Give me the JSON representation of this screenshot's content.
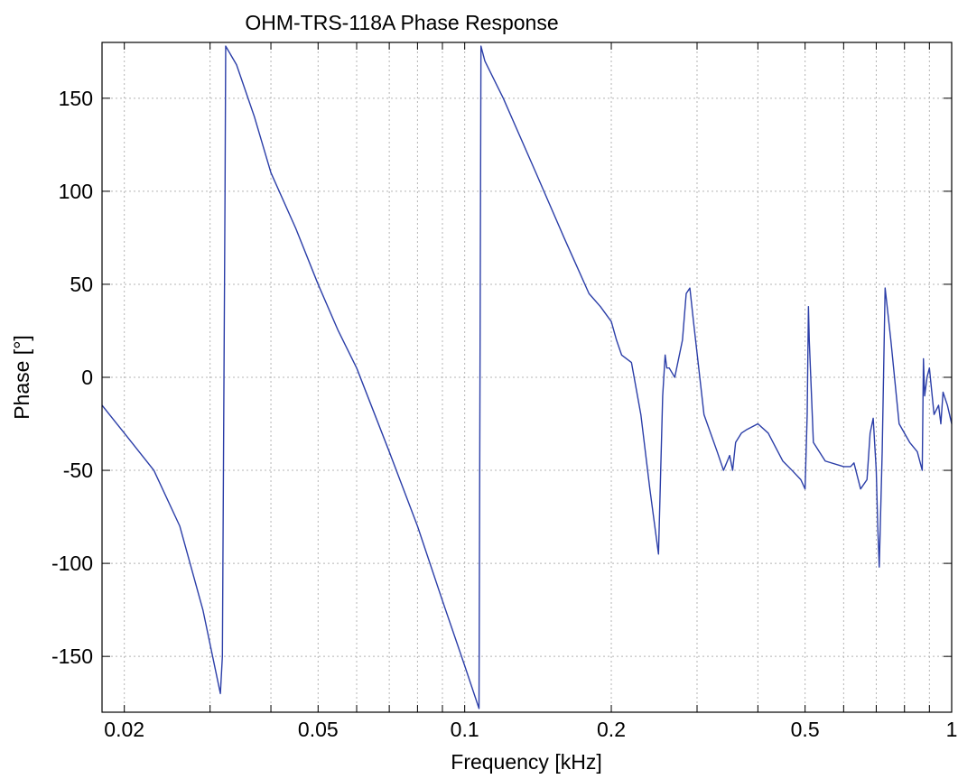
{
  "chart_data": {
    "type": "line",
    "title": "OHM-TRS-118A Phase Response",
    "xlabel": "Frequency [kHz]",
    "ylabel": "Phase [°]",
    "xscale": "log",
    "xlim": [
      0.018,
      1
    ],
    "ylim": [
      -180,
      180
    ],
    "grid": true,
    "x_tick_labels": [
      "0.02",
      "0.05",
      "0.1",
      "0.2",
      "0.5",
      "1"
    ],
    "x_tick_values": [
      0.02,
      0.05,
      0.1,
      0.2,
      0.5,
      1
    ],
    "y_tick_labels": [
      "150",
      "100",
      "50",
      "0",
      "-50",
      "-100",
      "-150"
    ],
    "y_tick_values": [
      150,
      100,
      50,
      0,
      -50,
      -100,
      -150
    ],
    "series": [
      {
        "color": "#2b3ea8",
        "x": [
          0.018,
          0.02,
          0.023,
          0.026,
          0.029,
          0.0315,
          0.0318,
          0.0322,
          0.0323,
          0.034,
          0.037,
          0.04,
          0.045,
          0.05,
          0.055,
          0.06,
          0.07,
          0.08,
          0.09,
          0.1,
          0.107,
          0.108,
          0.11,
          0.12,
          0.14,
          0.16,
          0.18,
          0.19,
          0.2,
          0.205,
          0.21,
          0.22,
          0.23,
          0.24,
          0.25,
          0.255,
          0.258,
          0.26,
          0.263,
          0.27,
          0.28,
          0.285,
          0.29,
          0.295,
          0.31,
          0.33,
          0.34,
          0.35,
          0.355,
          0.36,
          0.37,
          0.38,
          0.4,
          0.42,
          0.45,
          0.47,
          0.49,
          0.5,
          0.505,
          0.508,
          0.51,
          0.52,
          0.55,
          0.6,
          0.62,
          0.63,
          0.65,
          0.67,
          0.68,
          0.69,
          0.7,
          0.705,
          0.71,
          0.72,
          0.73,
          0.75,
          0.78,
          0.82,
          0.85,
          0.87,
          0.875,
          0.88,
          0.89,
          0.9,
          0.92,
          0.94,
          0.95,
          0.96,
          0.98,
          1.0
        ],
        "y": [
          -15,
          -30,
          -50,
          -80,
          -125,
          -170,
          -150,
          100,
          178,
          168,
          140,
          110,
          80,
          50,
          25,
          5,
          -40,
          -80,
          -120,
          -155,
          -178,
          178,
          170,
          150,
          110,
          75,
          45,
          38,
          30,
          20,
          12,
          8,
          -20,
          -60,
          -95,
          -10,
          12,
          5,
          5,
          0,
          20,
          45,
          48,
          30,
          -20,
          -40,
          -50,
          -42,
          -50,
          -35,
          -30,
          -28,
          -25,
          -30,
          -45,
          -50,
          -55,
          -60,
          -20,
          38,
          20,
          -35,
          -45,
          -48,
          -48,
          -46,
          -60,
          -55,
          -30,
          -22,
          -50,
          -80,
          -102,
          -40,
          48,
          20,
          -25,
          -35,
          -40,
          -50,
          10,
          -10,
          0,
          5,
          -20,
          -15,
          -25,
          -8,
          -15,
          -25
        ]
      }
    ]
  }
}
